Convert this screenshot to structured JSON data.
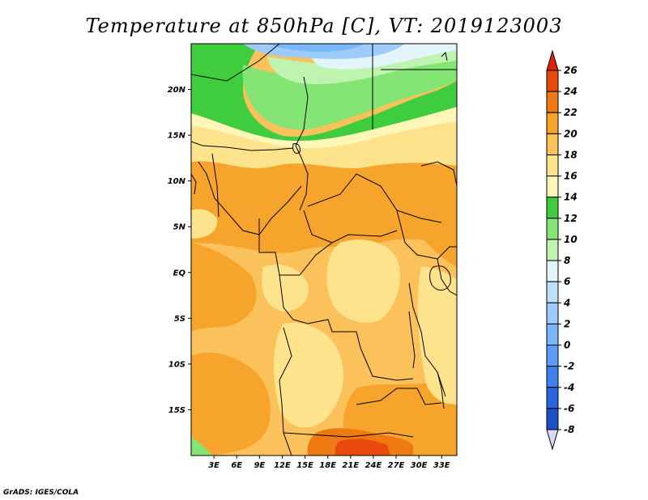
{
  "title": "Temperature at 850hPa [C], VT: 2019123003",
  "credit": "GrADS: IGES/COLA",
  "map": {
    "lon_range": [
      0,
      35
    ],
    "lat_range": [
      -20,
      25
    ],
    "lon_ticks": [
      {
        "lon": 3,
        "label": "3E"
      },
      {
        "lon": 6,
        "label": "6E"
      },
      {
        "lon": 9,
        "label": "9E"
      },
      {
        "lon": 12,
        "label": "12E"
      },
      {
        "lon": 15,
        "label": "15E"
      },
      {
        "lon": 18,
        "label": "18E"
      },
      {
        "lon": 21,
        "label": "21E"
      },
      {
        "lon": 24,
        "label": "24E"
      },
      {
        "lon": 27,
        "label": "27E"
      },
      {
        "lon": 30,
        "label": "30E"
      },
      {
        "lon": 33,
        "label": "33E"
      }
    ],
    "lat_ticks": [
      {
        "lat": 20,
        "label": "20N"
      },
      {
        "lat": 15,
        "label": "15N"
      },
      {
        "lat": 10,
        "label": "10N"
      },
      {
        "lat": 5,
        "label": "5N"
      },
      {
        "lat": 0,
        "label": "EQ"
      },
      {
        "lat": -5,
        "label": "5S"
      },
      {
        "lat": -10,
        "label": "10S"
      },
      {
        "lat": -15,
        "label": "15S"
      }
    ]
  },
  "colorbar": {
    "levels": [
      {
        "value": "-8",
        "color": "#1a2f9e"
      },
      {
        "value": "-6",
        "color": "#1f4fc8"
      },
      {
        "value": "-4",
        "color": "#2a66e0"
      },
      {
        "value": "-2",
        "color": "#3f82ee"
      },
      {
        "value": "0",
        "color": "#5b9df5"
      },
      {
        "value": "2",
        "color": "#7ab6fa"
      },
      {
        "value": "4",
        "color": "#9ccbfc"
      },
      {
        "value": "6",
        "color": "#bfe0fd"
      },
      {
        "value": "8",
        "color": "#e2f5fb"
      },
      {
        "value": "10",
        "color": "#bff3b0"
      },
      {
        "value": "12",
        "color": "#84e574"
      },
      {
        "value": "14",
        "color": "#3fcc3f"
      },
      {
        "value": "16",
        "color": "#fff7b8"
      },
      {
        "value": "18",
        "color": "#fde38c"
      },
      {
        "value": "20",
        "color": "#fbc15a"
      },
      {
        "value": "22",
        "color": "#f7a42c"
      },
      {
        "value": "24",
        "color": "#ef7a12"
      },
      {
        "value": "26",
        "color": "#e94a0c"
      }
    ],
    "below_color": "#dcd8f5",
    "above_color": "#dd2410"
  }
}
